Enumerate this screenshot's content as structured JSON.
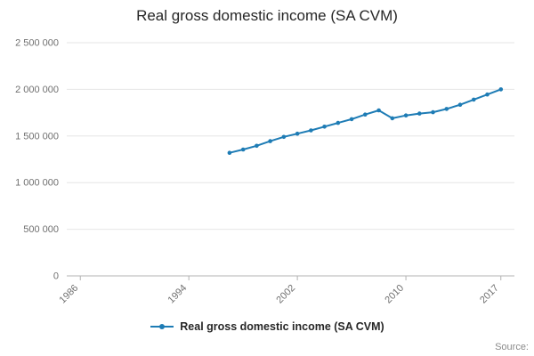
{
  "chart_data": {
    "type": "line",
    "title": "Real gross domestic income (SA CVM)",
    "series": [
      {
        "name": "Real gross domestic income (SA CVM)",
        "x": [
          1997,
          1998,
          1999,
          2000,
          2001,
          2002,
          2003,
          2004,
          2005,
          2006,
          2007,
          2008,
          2009,
          2010,
          2011,
          2012,
          2013,
          2014,
          2015,
          2016,
          2017
        ],
        "values": [
          1320000,
          1355000,
          1395000,
          1445000,
          1490000,
          1525000,
          1560000,
          1600000,
          1640000,
          1680000,
          1730000,
          1775000,
          1690000,
          1720000,
          1740000,
          1755000,
          1790000,
          1835000,
          1890000,
          1945000,
          2000000
        ]
      }
    ],
    "xlabel": "",
    "ylabel": "",
    "xlim": [
      1985,
      2018
    ],
    "ylim": [
      0,
      2500000
    ],
    "xticks": [
      1986,
      1994,
      2002,
      2010,
      2017
    ],
    "yticks": [
      0,
      500000,
      1000000,
      1500000,
      2000000,
      2500000
    ],
    "ytick_labels": [
      "0",
      "500 000",
      "1 000 000",
      "1 500 000",
      "2 000 000",
      "2 500 000"
    ],
    "grid": "horizontal",
    "legend_position": "bottom",
    "line_color": "#1e7cb5",
    "grid_color": "#e6e6e6",
    "axis_color": "#b3b3b3"
  },
  "legend": {
    "label": "Real gross domestic income (SA CVM)"
  },
  "footer": {
    "source": "Source:"
  }
}
